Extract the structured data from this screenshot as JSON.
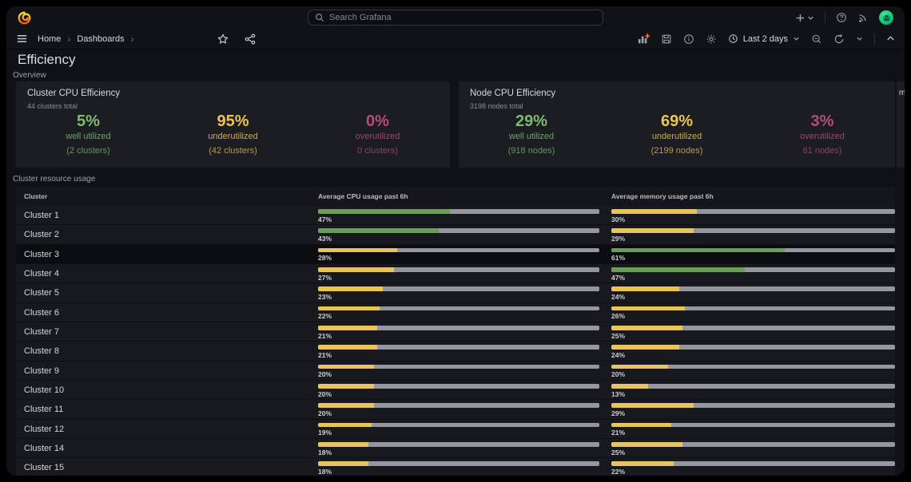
{
  "topnav": {
    "search_placeholder": "Search Grafana",
    "add_label": "+",
    "chevron_down": "⌄"
  },
  "toolbar": {
    "breadcrumb": {
      "home": "Home",
      "dashboards": "Dashboards",
      "separator": "›"
    },
    "time_range_label": "Last 2 days",
    "chevron_down": "⌄"
  },
  "dashboard": {
    "title": "Efficiency",
    "sections": {
      "overview": "Overview",
      "usage": "Cluster resource usage"
    },
    "clipped_panel_text": "m"
  },
  "panels": [
    {
      "title": "Cluster CPU Efficiency",
      "subtitle": "44 clusters total",
      "stats": [
        {
          "value": "5%",
          "label": "well utilized",
          "sub": "(2 clusters)",
          "color": "green"
        },
        {
          "value": "95%",
          "label": "underutilized",
          "sub": "(42 clusters)",
          "color": "yellow"
        },
        {
          "value": "0%",
          "label": "overutilized",
          "sub": "0 clusters)",
          "color": "pink"
        }
      ]
    },
    {
      "title": "Node CPU Efficiency",
      "subtitle": "3198 nodes total",
      "stats": [
        {
          "value": "29%",
          "label": "well utilized",
          "sub": "(918 nodes)",
          "color": "green"
        },
        {
          "value": "69%",
          "label": "underutilized",
          "sub": "(2199 nodes)",
          "color": "yellow"
        },
        {
          "value": "3%",
          "label": "overutilized",
          "sub": "81 nodes)",
          "color": "pink"
        }
      ]
    }
  ],
  "table": {
    "headers": [
      "Cluster",
      "Average CPU usage past 6h",
      "Average memory usage past 6h"
    ],
    "threshold_green_min": 40,
    "rows": [
      {
        "name": "Cluster 1",
        "cpu": 47,
        "mem": 30
      },
      {
        "name": "Cluster 2",
        "cpu": 43,
        "mem": 29
      },
      {
        "name": "Cluster 3",
        "cpu": 28,
        "mem": 61,
        "highlight": true
      },
      {
        "name": "Cluster 4",
        "cpu": 27,
        "mem": 47
      },
      {
        "name": "Cluster 5",
        "cpu": 23,
        "mem": 24
      },
      {
        "name": "Cluster 6",
        "cpu": 22,
        "mem": 26
      },
      {
        "name": "Cluster 7",
        "cpu": 21,
        "mem": 25
      },
      {
        "name": "Cluster 8",
        "cpu": 21,
        "mem": 24
      },
      {
        "name": "Cluster 9",
        "cpu": 20,
        "mem": 20
      },
      {
        "name": "Cluster 10",
        "cpu": 20,
        "mem": 13
      },
      {
        "name": "Cluster 11",
        "cpu": 20,
        "mem": 29
      },
      {
        "name": "Cluster 12",
        "cpu": 19,
        "mem": 21
      },
      {
        "name": "Cluster 14",
        "cpu": 18,
        "mem": 25
      },
      {
        "name": "Cluster 15",
        "cpu": 18,
        "mem": 22
      }
    ]
  },
  "colors": {
    "green": "#6a9e56",
    "yellow": "#e8c45c",
    "gray": "#94979e",
    "stat_green": "#7dbb6e",
    "stat_yellow": "#e9c554",
    "stat_pink": "#b34f74"
  }
}
